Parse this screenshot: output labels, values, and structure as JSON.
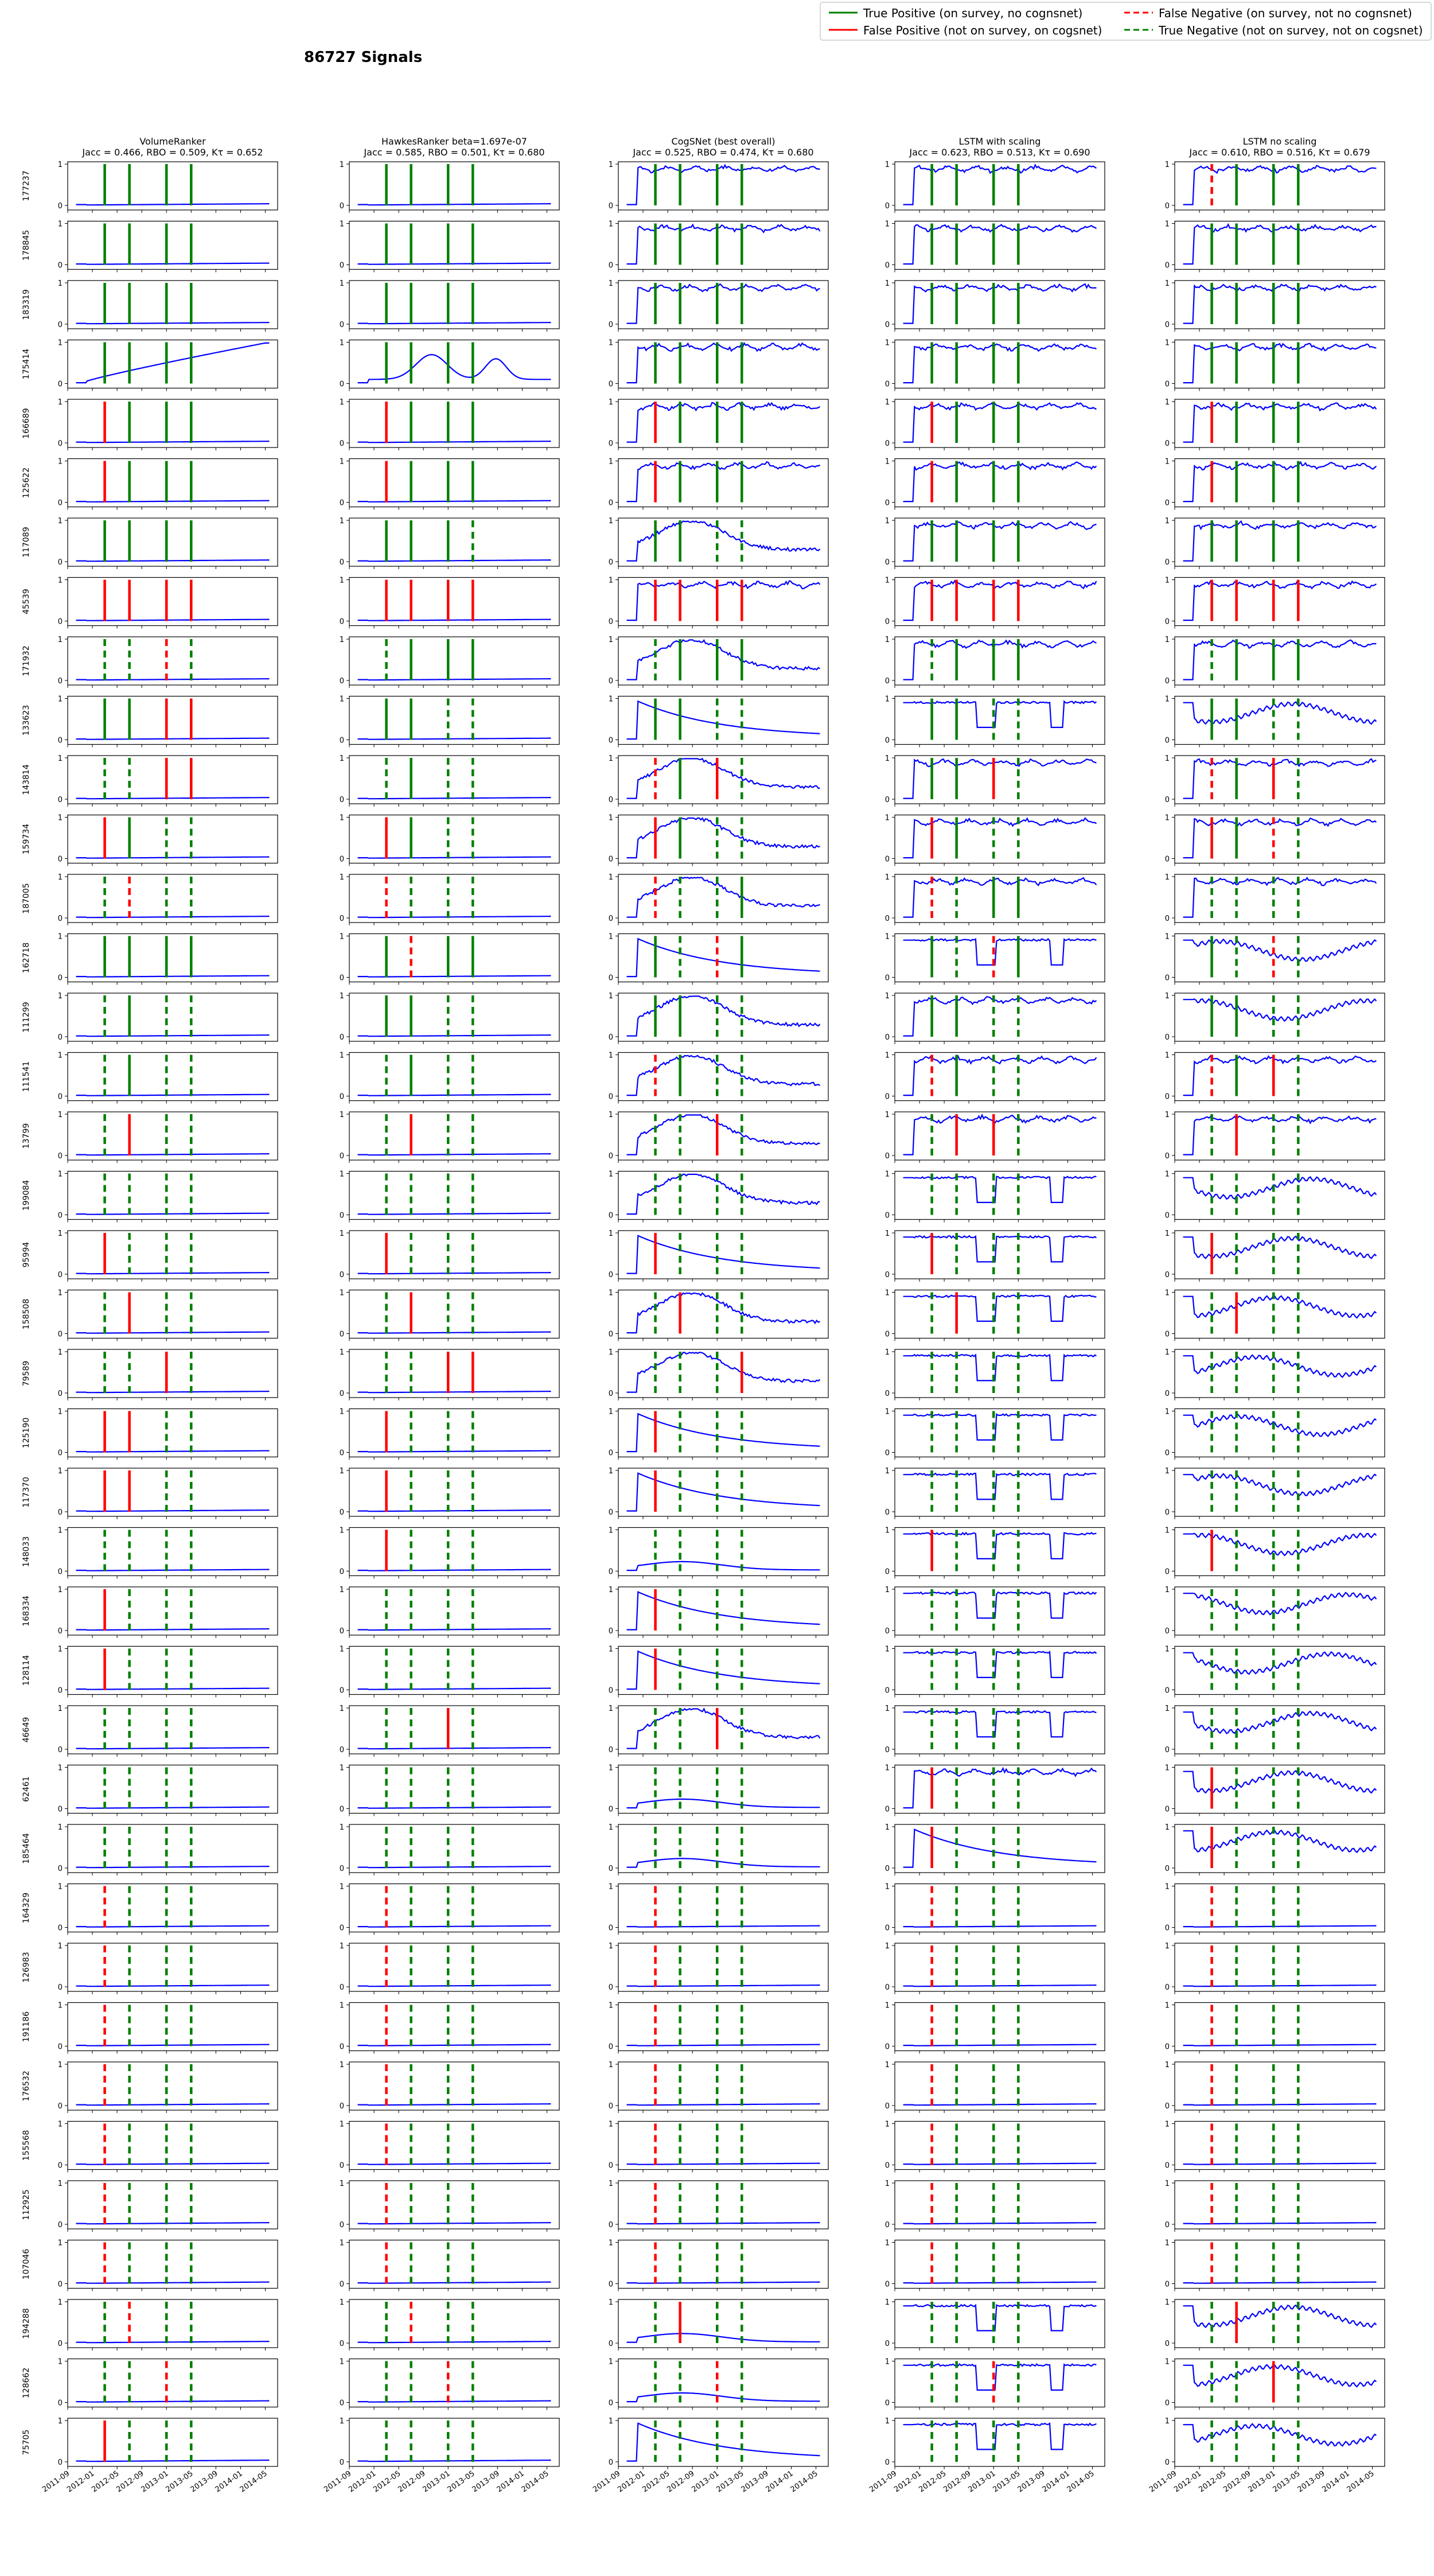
{
  "figure": {
    "title": "86727 Signals"
  },
  "legend": {
    "entries": [
      {
        "label": "True Positive (on survey, no cognsnet)",
        "color": "#008000",
        "style": "solid"
      },
      {
        "label": "False Negative (on survey, not no cognsnet)",
        "color": "#ff0000",
        "style": "dashed"
      },
      {
        "label": "False Positive (not on survey, on cogsnet)",
        "color": "#ff0000",
        "style": "solid"
      },
      {
        "label": "True Negative (not on survey, not on cogsnet)",
        "color": "#008000",
        "style": "dashed"
      }
    ]
  },
  "chart_data": {
    "type": "line",
    "grid": false,
    "signal_color": "#0000ff",
    "x_ticks": [
      "2011-09",
      "2012-01",
      "2012-05",
      "2012-09",
      "2013-01",
      "2013-05",
      "2013-09",
      "2014-01",
      "2014-05"
    ],
    "xlim": [
      "2011-09",
      "2014-07"
    ],
    "ylim": [
      0,
      1
    ],
    "y_ticks": [
      0,
      1
    ],
    "survey_dates": [
      "2012-03",
      "2012-07",
      "2013-01",
      "2013-05"
    ],
    "columns": [
      {
        "name": "VolumeRanker",
        "stats": "Jacc = 0.466, RBO = 0.509, Kτ = 0.652"
      },
      {
        "name": "HawkesRanker beta=1.697e-07",
        "stats": "Jacc = 0.585, RBO = 0.501, Kτ = 0.680"
      },
      {
        "name": "CogSNet (best overall)",
        "stats": "Jacc = 0.525, RBO = 0.474, Kτ = 0.680"
      },
      {
        "name": "LSTM with scaling",
        "stats": "Jacc = 0.623, RBO = 0.513, Kτ = 0.690"
      },
      {
        "name": "LSTM no scaling",
        "stats": "Jacc = 0.610, RBO = 0.516, Kτ = 0.679"
      }
    ],
    "row_ids": [
      "177237",
      "178845",
      "183319",
      "175414",
      "166689",
      "125622",
      "117089",
      "45539",
      "171932",
      "133623",
      "143814",
      "159734",
      "187005",
      "162718",
      "111299",
      "111541",
      "13799",
      "199084",
      "95994",
      "158508",
      "79589",
      "125190",
      "117370",
      "148033",
      "168334",
      "128114",
      "46649",
      "62461",
      "185464",
      "164329",
      "126983",
      "191186",
      "176532",
      "155568",
      "112925",
      "107046",
      "194288",
      "128662",
      "75705"
    ],
    "markers": [
      [
        "TTTT",
        "TTTT",
        "TTTT",
        "TTTT",
        "FTTT"
      ],
      [
        "TTTT",
        "TTTT",
        "TTTT",
        "TTTT",
        "TTTT"
      ],
      [
        "TTTT",
        "TTTT",
        "TTTT",
        "TTTT",
        "TTTT"
      ],
      [
        "TTTT",
        "TTTT",
        "TTTT",
        "TTTT",
        "TTTT"
      ],
      [
        "PTTT",
        "PTTT",
        "PTTT",
        "PTTT",
        "PTTT"
      ],
      [
        "PTTT",
        "PTTT",
        "PTTT",
        "PTTT",
        "PTTT"
      ],
      [
        "TTTT",
        "TTTN",
        "TTNN",
        "TTTT",
        "TTTT"
      ],
      [
        "PPPP",
        "PPPP",
        "PPPP",
        "PPPP",
        "PPPP"
      ],
      [
        "NNFN",
        "NTTT",
        "NTTT",
        "NTTT",
        "NTTT"
      ],
      [
        "TTPP",
        "TTNN",
        "TTNN",
        "TTNN",
        "TTNN"
      ],
      [
        "NNPP",
        "NTNN",
        "FTPN",
        "TTPN",
        "FTPN"
      ],
      [
        "PTNN",
        "PTNN",
        "PTNN",
        "PTNN",
        "PTFN"
      ],
      [
        "NFNN",
        "FNNN",
        "FNNT",
        "FNTT",
        "NNNN"
      ],
      [
        "TTTT",
        "TFTT",
        "TNFT",
        "TNFT",
        "TNFN"
      ],
      [
        "NTNN",
        "TTNN",
        "TTNN",
        "TTNN",
        "TTNN"
      ],
      [
        "NTNN",
        "NTNN",
        "FTNN",
        "FTNN",
        "FTPN"
      ],
      [
        "NPNN",
        "NPNN",
        "NNPN",
        "NPPN",
        "NPNN"
      ],
      [
        "NNNN",
        "NNNN",
        "NNNN",
        "NNNN",
        "NNNN"
      ],
      [
        "PNNN",
        "PNNN",
        "PNNN",
        "PNNN",
        "PNNN"
      ],
      [
        "NPNN",
        "NPNN",
        "NPNN",
        "NPNN",
        "NPNN"
      ],
      [
        "NNPN",
        "NNPP",
        "NNNP",
        "NNNN",
        "NNNN"
      ],
      [
        "PPNN",
        "PNNN",
        "PNNN",
        "NNNN",
        "NNNN"
      ],
      [
        "PPNN",
        "PNNN",
        "PNNN",
        "NNNN",
        "NNNN"
      ],
      [
        "NNNN",
        "PNNN",
        "NNNN",
        "PNNN",
        "PNNN"
      ],
      [
        "PNNN",
        "NNNN",
        "PNNN",
        "NNNN",
        "NNNN"
      ],
      [
        "PNNN",
        "NNNN",
        "PNNN",
        "NNNN",
        "NNNN"
      ],
      [
        "NNNN",
        "NNPN",
        "NNPN",
        "NNNN",
        "NNNN"
      ],
      [
        "NNNN",
        "NNNN",
        "NNNN",
        "PNNN",
        "PNNN"
      ],
      [
        "NNNN",
        "NNNN",
        "NNNN",
        "PNNN",
        "PNNN"
      ],
      [
        "FNNN",
        "FNNN",
        "FNNN",
        "FNNN",
        "FNNN"
      ],
      [
        "FNNN",
        "FNNN",
        "FNNN",
        "FNNN",
        "FNNN"
      ],
      [
        "FNNN",
        "FNNN",
        "FNNN",
        "FNNN",
        "FNNN"
      ],
      [
        "FNNN",
        "FNNN",
        "FNNN",
        "FNNN",
        "FNNN"
      ],
      [
        "FNNN",
        "FNNN",
        "FNNN",
        "FNNN",
        "FNNN"
      ],
      [
        "FNNN",
        "FNNN",
        "FNNN",
        "FNNN",
        "FNNN"
      ],
      [
        "FNNN",
        "FNNN",
        "FNNN",
        "FNNN",
        "FNNN"
      ],
      [
        "NFNN",
        "NFNN",
        "NPNN",
        "NNNN",
        "NPNN"
      ],
      [
        "NNFN",
        "NNFN",
        "NNFN",
        "NNFN",
        "NNPN"
      ],
      [
        "PNNN",
        "NNNN",
        "NNNN",
        "NNNN",
        "NNNN"
      ]
    ],
    "signal_kinds": [
      [
        "flat",
        "flat",
        "high",
        "high",
        "high"
      ],
      [
        "flat",
        "flat",
        "high",
        "high",
        "high"
      ],
      [
        "flat",
        "flat",
        "high",
        "high",
        "high"
      ],
      [
        "rise",
        "bump",
        "high",
        "high",
        "high"
      ],
      [
        "flat",
        "flat",
        "high",
        "high",
        "high"
      ],
      [
        "flat",
        "flat",
        "high",
        "high",
        "high"
      ],
      [
        "flat",
        "flat",
        "peak",
        "high",
        "high"
      ],
      [
        "flat",
        "flat",
        "high",
        "high",
        "high"
      ],
      [
        "flat",
        "flat",
        "peak",
        "high",
        "high"
      ],
      [
        "flat",
        "flat",
        "decay",
        "dip",
        "wave"
      ],
      [
        "flat",
        "flat",
        "peak",
        "high",
        "high"
      ],
      [
        "flat",
        "flat",
        "peak",
        "high",
        "high"
      ],
      [
        "flat",
        "flat",
        "peak",
        "high",
        "high"
      ],
      [
        "flat",
        "flat",
        "decay",
        "dip",
        "wave"
      ],
      [
        "flat",
        "flat",
        "peak",
        "high",
        "wave"
      ],
      [
        "flat",
        "flat",
        "peak",
        "high",
        "high"
      ],
      [
        "flat",
        "flat",
        "peak",
        "high",
        "high"
      ],
      [
        "flat",
        "flat",
        "peak",
        "dip",
        "wave"
      ],
      [
        "flat",
        "flat",
        "decay",
        "dip",
        "wave"
      ],
      [
        "flat",
        "flat",
        "peak",
        "dip",
        "wave"
      ],
      [
        "flat",
        "flat",
        "peak",
        "dip",
        "wave"
      ],
      [
        "flat",
        "flat",
        "decay",
        "dip",
        "wave"
      ],
      [
        "flat",
        "flat",
        "decay",
        "dip",
        "wave"
      ],
      [
        "flat",
        "flat",
        "low",
        "dip",
        "wave"
      ],
      [
        "flat",
        "flat",
        "decay",
        "dip",
        "wave"
      ],
      [
        "flat",
        "flat",
        "decay",
        "dip",
        "wave"
      ],
      [
        "flat",
        "flat",
        "peak",
        "dip",
        "wave"
      ],
      [
        "flat",
        "flat",
        "low",
        "high",
        "wave"
      ],
      [
        "flat",
        "flat",
        "low",
        "decay",
        "wave"
      ],
      [
        "flat",
        "flat",
        "flat",
        "flat",
        "flat"
      ],
      [
        "flat",
        "flat",
        "flat",
        "flat",
        "flat"
      ],
      [
        "flat",
        "flat",
        "flat",
        "flat",
        "flat"
      ],
      [
        "flat",
        "flat",
        "flat",
        "flat",
        "flat"
      ],
      [
        "flat",
        "flat",
        "flat",
        "flat",
        "flat"
      ],
      [
        "flat",
        "flat",
        "flat",
        "flat",
        "flat"
      ],
      [
        "flat",
        "flat",
        "flat",
        "flat",
        "flat"
      ],
      [
        "flat",
        "flat",
        "low",
        "dip",
        "wave"
      ],
      [
        "flat",
        "flat",
        "low",
        "dip",
        "wave"
      ],
      [
        "flat",
        "flat",
        "decay",
        "dip",
        "wave"
      ]
    ]
  }
}
